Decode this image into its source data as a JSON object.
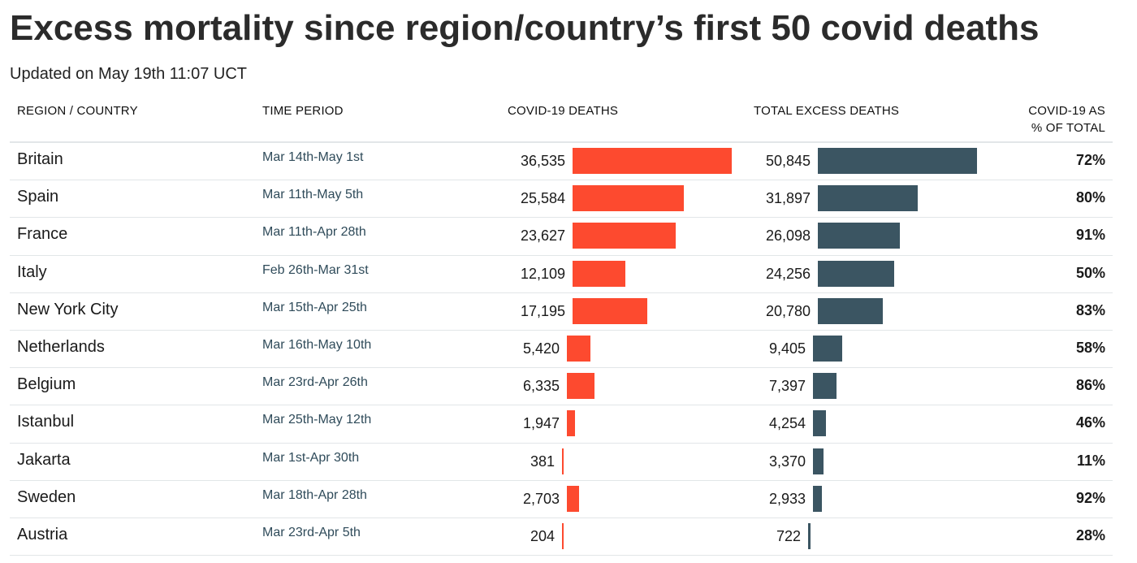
{
  "title": "Excess mortality since region/country’s first 50 covid deaths",
  "subtitle": "Updated on May 19th 11:07 UCT",
  "colors": {
    "covid_bar": "#fd4a2f",
    "excess_bar": "#3b5562"
  },
  "headers": {
    "region": "REGION / COUNTRY",
    "period": "TIME PERIOD",
    "covid": "COVID-19 DEATHS",
    "excess": "TOTAL EXCESS DEATHS",
    "pct_line1": "COVID-19 AS",
    "pct_line2": "% OF TOTAL"
  },
  "chart_data": {
    "type": "table",
    "columns": [
      "REGION / COUNTRY",
      "TIME PERIOD",
      "COVID-19 DEATHS",
      "TOTAL EXCESS DEATHS",
      "COVID-19 AS % OF TOTAL"
    ],
    "rows": [
      {
        "region": "Britain",
        "period": "Mar 14th-May 1st",
        "covid": 36535,
        "covid_label": "36,535",
        "excess": 50845,
        "excess_label": "50,845",
        "pct": "72%"
      },
      {
        "region": "Spain",
        "period": "Mar 11th-May 5th",
        "covid": 25584,
        "covid_label": "25,584",
        "excess": 31897,
        "excess_label": "31,897",
        "pct": "80%"
      },
      {
        "region": "France",
        "period": "Mar 11th-Apr 28th",
        "covid": 23627,
        "covid_label": "23,627",
        "excess": 26098,
        "excess_label": "26,098",
        "pct": "91%"
      },
      {
        "region": "Italy",
        "period": "Feb 26th-Mar 31st",
        "covid": 12109,
        "covid_label": "12,109",
        "excess": 24256,
        "excess_label": "24,256",
        "pct": "50%"
      },
      {
        "region": "New York City",
        "period": "Mar 15th-Apr 25th",
        "covid": 17195,
        "covid_label": "17,195",
        "excess": 20780,
        "excess_label": "20,780",
        "pct": "83%"
      },
      {
        "region": "Netherlands",
        "period": "Mar 16th-May 10th",
        "covid": 5420,
        "covid_label": "5,420",
        "excess": 9405,
        "excess_label": "9,405",
        "pct": "58%"
      },
      {
        "region": "Belgium",
        "period": "Mar 23rd-Apr 26th",
        "covid": 6335,
        "covid_label": "6,335",
        "excess": 7397,
        "excess_label": "7,397",
        "pct": "86%"
      },
      {
        "region": "Istanbul",
        "period": "Mar 25th-May 12th",
        "covid": 1947,
        "covid_label": "1,947",
        "excess": 4254,
        "excess_label": "4,254",
        "pct": "46%"
      },
      {
        "region": "Jakarta",
        "period": "Mar 1st-Apr 30th",
        "covid": 381,
        "covid_label": "381",
        "excess": 3370,
        "excess_label": "3,370",
        "pct": "11%"
      },
      {
        "region": "Sweden",
        "period": "Mar 18th-Apr 28th",
        "covid": 2703,
        "covid_label": "2,703",
        "excess": 2933,
        "excess_label": "2,933",
        "pct": "92%"
      },
      {
        "region": "Austria",
        "period": "Mar 23rd-Apr 5th",
        "covid": 204,
        "covid_label": "204",
        "excess": 722,
        "excess_label": "722",
        "pct": "28%"
      }
    ]
  }
}
